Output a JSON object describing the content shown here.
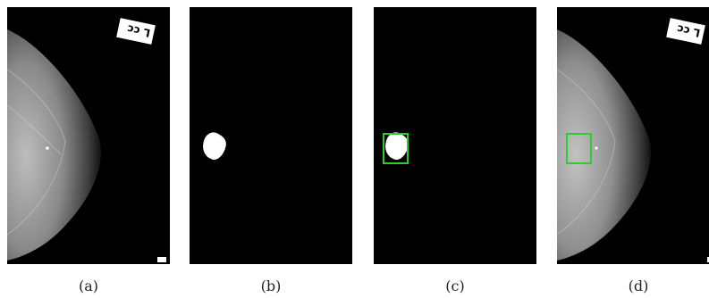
{
  "panels": [
    {
      "caption": "(a)",
      "marker_text": "L cc"
    },
    {
      "caption": "(b)"
    },
    {
      "caption": "(c)"
    },
    {
      "caption": "(d)",
      "marker_text": "L cc"
    }
  ],
  "colors": {
    "background": "#000000",
    "mask": "#ffffff",
    "box": "#2ecc2e",
    "tissue": "#9a9a9a"
  }
}
